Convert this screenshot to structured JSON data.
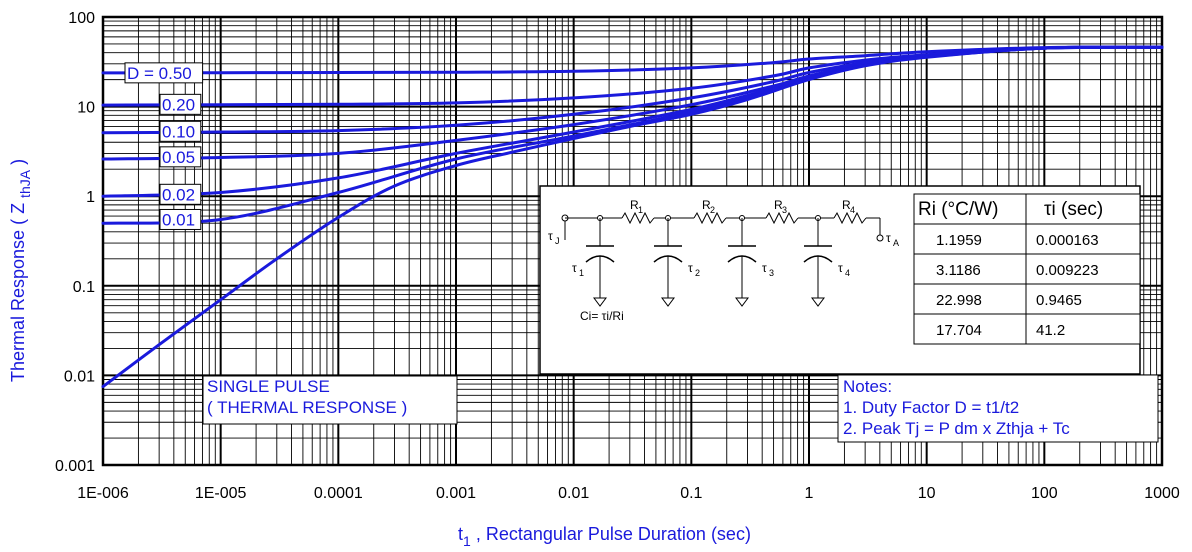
{
  "chart_data": {
    "type": "line",
    "xscale": "log",
    "yscale": "log",
    "xlim": [
      1e-06,
      1000
    ],
    "ylim": [
      0.001,
      100
    ],
    "grid": true,
    "xlabel_main": "t",
    "xlabel_sub": "1",
    "xlabel_rest": " , Rectangular Pulse Duration (sec)",
    "ylabel_main": "Thermal Response ( Z ",
    "ylabel_sub": "thJA",
    "ylabel_end": " )",
    "x_ticks": [
      {
        "v": 1e-06,
        "label": "1E-006"
      },
      {
        "v": 1e-05,
        "label": "1E-005"
      },
      {
        "v": 0.0001,
        "label": "0.0001"
      },
      {
        "v": 0.001,
        "label": "0.001"
      },
      {
        "v": 0.01,
        "label": "0.01"
      },
      {
        "v": 0.1,
        "label": "0.1"
      },
      {
        "v": 1,
        "label": "1"
      },
      {
        "v": 10,
        "label": "10"
      },
      {
        "v": 100,
        "label": "100"
      },
      {
        "v": 1000,
        "label": "1000"
      }
    ],
    "y_ticks": [
      {
        "v": 100,
        "label": "100"
      },
      {
        "v": 10,
        "label": "10"
      },
      {
        "v": 1,
        "label": "1"
      },
      {
        "v": 0.1,
        "label": "0.1"
      },
      {
        "v": 0.01,
        "label": "0.01"
      },
      {
        "v": 0.001,
        "label": "0.001"
      }
    ],
    "series": [
      {
        "name": "D = 0.50",
        "x": [
          1e-06,
          1e-05,
          0.0001,
          0.001,
          0.01,
          0.1,
          0.5,
          1,
          3,
          10,
          100,
          1000
        ],
        "y": [
          23.8,
          23.9,
          24,
          24.2,
          24.8,
          27,
          31,
          34,
          37,
          41,
          45.5,
          46
        ]
      },
      {
        "name": "0.20",
        "x": [
          1e-06,
          1e-05,
          0.0001,
          0.001,
          0.01,
          0.1,
          0.5,
          1,
          3,
          10,
          100,
          1000
        ],
        "y": [
          10.4,
          10.5,
          10.6,
          11,
          12.5,
          16,
          22,
          27,
          33,
          38,
          45,
          46
        ]
      },
      {
        "name": "0.10",
        "x": [
          1e-06,
          1e-05,
          0.0001,
          0.001,
          0.01,
          0.1,
          0.5,
          1,
          3,
          10,
          100,
          1000
        ],
        "y": [
          5.1,
          5.2,
          5.4,
          6.2,
          8.2,
          12.5,
          19,
          24,
          31,
          37,
          45,
          46
        ]
      },
      {
        "name": "0.05",
        "x": [
          1e-06,
          1e-05,
          0.0001,
          0.001,
          0.01,
          0.1,
          0.5,
          1,
          3,
          10,
          100,
          1000
        ],
        "y": [
          2.6,
          2.7,
          3,
          4.2,
          6.3,
          10.5,
          17,
          22,
          30,
          36,
          45,
          46
        ]
      },
      {
        "name": "0.02",
        "x": [
          1e-06,
          1e-05,
          0.0001,
          0.001,
          0.01,
          0.1,
          0.5,
          1,
          3,
          10,
          100,
          1000
        ],
        "y": [
          1.0,
          1.1,
          1.6,
          3.0,
          5.2,
          9.3,
          16,
          21,
          29,
          36,
          45,
          46
        ]
      },
      {
        "name": "0.01",
        "x": [
          1e-06,
          1e-05,
          0.0001,
          0.001,
          0.01,
          0.1,
          0.5,
          1,
          3,
          10,
          100,
          1000
        ],
        "y": [
          0.5,
          0.55,
          1.1,
          2.6,
          4.7,
          8.7,
          15.5,
          20.5,
          29,
          36,
          45,
          46
        ]
      },
      {
        "name": "SINGLE PULSE",
        "x": [
          1e-06,
          3e-06,
          1e-05,
          3e-05,
          0.0001,
          0.0003,
          0.001,
          0.003,
          0.01,
          0.03,
          0.1,
          0.3,
          1,
          3,
          10,
          100,
          1000
        ],
        "y": [
          0.0075,
          0.022,
          0.07,
          0.2,
          0.58,
          1.3,
          2.2,
          3.1,
          4.4,
          6,
          8.2,
          12,
          20,
          28.5,
          35.5,
          45,
          46
        ]
      }
    ],
    "curve_labels": [
      "D = 0.50",
      "0.20",
      "0.10",
      "0.05",
      "0.02",
      "0.01"
    ],
    "annotation_single": [
      "SINGLE PULSE",
      "( THERMAL RESPONSE )"
    ],
    "annotation_notes": [
      "Notes:",
      "1. Duty Factor D = t1/t2",
      "2. Peak Tj = P dm x Zthja + Tc"
    ],
    "circuit": {
      "formula": "Ci= τi/Ri",
      "node_start": "τ",
      "node_start_sub": "J",
      "node_end": "τ",
      "node_end_sub": "A",
      "resistors": [
        {
          "t": "R",
          "s": "1"
        },
        {
          "t": "R",
          "s": "2"
        },
        {
          "t": "R",
          "s": "3"
        },
        {
          "t": "R",
          "s": "4"
        }
      ],
      "caps": [
        {
          "t": "τ",
          "s": "1"
        },
        {
          "t": "τ",
          "s": "2"
        },
        {
          "t": "τ",
          "s": "3"
        },
        {
          "t": "τ",
          "s": "4"
        }
      ]
    },
    "table": {
      "headers": [
        "Ri (°C/W)",
        "τi (sec)"
      ],
      "rows": [
        [
          "1.1959",
          "0.000163"
        ],
        [
          "3.1186",
          "0.009223"
        ],
        [
          "22.998",
          "0.9465"
        ],
        [
          "17.704",
          "41.2"
        ]
      ]
    },
    "colors": {
      "curve": "#1a1adc",
      "grid": "#000000"
    }
  }
}
